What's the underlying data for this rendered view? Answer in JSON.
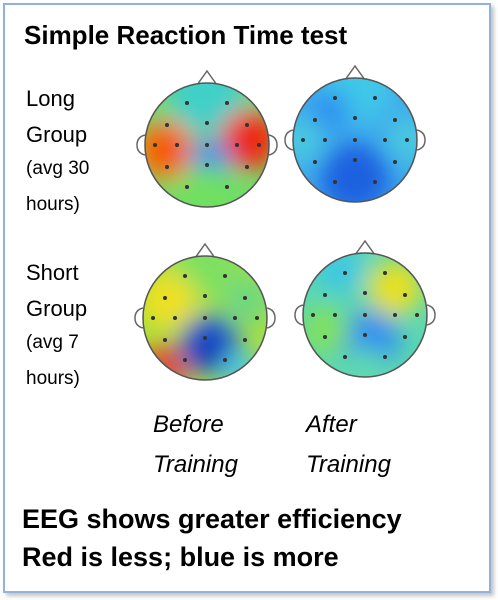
{
  "title": "Simple Reaction Time test",
  "rows": [
    {
      "lines": [
        "Long",
        "Group",
        "(avg 30",
        "hours)"
      ]
    },
    {
      "lines": [
        "Short",
        "Group",
        "(avg 7",
        "hours)"
      ]
    }
  ],
  "columns": [
    {
      "lines": [
        "Before",
        "Training"
      ]
    },
    {
      "lines": [
        "After",
        "Training"
      ]
    }
  ],
  "footer": [
    "EEG shows greater efficiency",
    "Red is less; blue is more"
  ]
}
